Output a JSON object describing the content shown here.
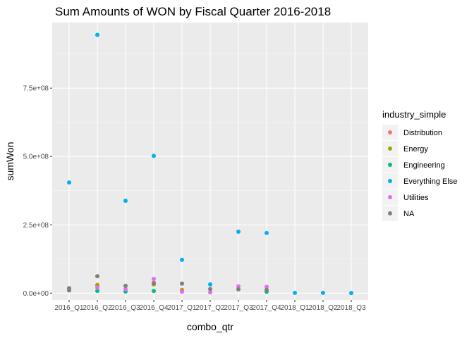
{
  "chart_data": {
    "type": "scatter",
    "title": "Sum Amounts of WON by Fiscal Quarter 2016-2018",
    "xlabel": "combo_qtr",
    "ylabel": "sumWon",
    "categories": [
      "2016_Q1",
      "2016_Q2",
      "2016_Q3",
      "2016_Q4",
      "2017_Q1",
      "2017_Q2",
      "2017_Q3",
      "2017_Q4",
      "2018_Q1",
      "2018_Q2",
      "2018_Q3"
    ],
    "y_ticks": [
      0,
      250000000,
      500000000,
      750000000
    ],
    "y_tick_labels": [
      "0.0e+00",
      "2.5e+08",
      "5.0e+08",
      "7.5e+08"
    ],
    "ylim": [
      -25000000,
      990000000
    ],
    "grid": true,
    "legend_position": "right",
    "legend_title": "industry_simple",
    "series": [
      {
        "name": "Distribution",
        "color": "#F8766D",
        "points": [
          [
            "2016_Q2",
            28000000
          ],
          [
            "2016_Q4",
            38000000
          ],
          [
            "2017_Q1",
            12000000
          ]
        ]
      },
      {
        "name": "Energy",
        "color": "#A3A500",
        "points": [
          [
            "2016_Q2",
            30000000
          ],
          [
            "2016_Q4",
            32000000
          ],
          [
            "2017_Q1",
            10000000
          ]
        ]
      },
      {
        "name": "Engineering",
        "color": "#00BF7D",
        "points": [
          [
            "2016_Q2",
            8000000
          ],
          [
            "2016_Q3",
            6000000
          ],
          [
            "2016_Q4",
            8000000
          ],
          [
            "2017_Q4",
            5000000
          ]
        ]
      },
      {
        "name": "Everything Else",
        "color": "#00B0F6",
        "points": [
          [
            "2016_Q1",
            405000000
          ],
          [
            "2016_Q2",
            945000000
          ],
          [
            "2016_Q3",
            338000000
          ],
          [
            "2016_Q4",
            502000000
          ],
          [
            "2017_Q1",
            122000000
          ],
          [
            "2017_Q2",
            32000000
          ],
          [
            "2017_Q3",
            225000000
          ],
          [
            "2017_Q4",
            220000000
          ],
          [
            "2018_Q1",
            1000000
          ],
          [
            "2018_Q2",
            1000000
          ],
          [
            "2018_Q3",
            500000
          ]
        ]
      },
      {
        "name": "Utilities",
        "color": "#E76BF3",
        "points": [
          [
            "2016_Q2",
            20000000
          ],
          [
            "2016_Q3",
            15000000
          ],
          [
            "2016_Q4",
            52000000
          ],
          [
            "2017_Q1",
            5000000
          ],
          [
            "2017_Q2",
            3000000
          ],
          [
            "2017_Q3",
            25000000
          ],
          [
            "2017_Q4",
            23000000
          ]
        ]
      },
      {
        "name": "NA",
        "color": "#7F7F7F",
        "points": [
          [
            "2016_Q1",
            10000000
          ],
          [
            "2016_Q1",
            18000000
          ],
          [
            "2016_Q2",
            62000000
          ],
          [
            "2016_Q3",
            27000000
          ],
          [
            "2016_Q4",
            36000000
          ],
          [
            "2017_Q1",
            35000000
          ],
          [
            "2017_Q2",
            15000000
          ],
          [
            "2017_Q3",
            14000000
          ],
          [
            "2017_Q4",
            12000000
          ]
        ]
      }
    ]
  }
}
